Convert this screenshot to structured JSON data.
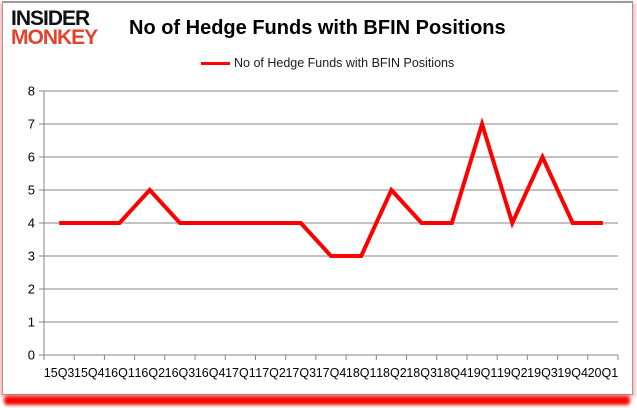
{
  "logo": {
    "line1": "INSIDER",
    "line2": "MONKEY"
  },
  "header": {
    "title": "No of Hedge Funds with BFIN Positions"
  },
  "legend": {
    "label": "No of Hedge Funds with BFIN Positions"
  },
  "colors": {
    "line": "#ff0000",
    "logo_black": "#111111",
    "logo_red": "#e0452f",
    "grid": "#848484",
    "axis": "#848484",
    "bottom_bar": "#f40800"
  },
  "chart_data": {
    "type": "line",
    "title": "No of Hedge Funds with BFIN Positions",
    "categories": [
      "15Q3",
      "15Q4",
      "16Q1",
      "16Q2",
      "16Q3",
      "16Q4",
      "17Q1",
      "17Q2",
      "17Q3",
      "17Q4",
      "18Q1",
      "18Q2",
      "18Q3",
      "18Q4",
      "19Q1",
      "19Q2",
      "19Q3",
      "19Q4",
      "20Q1"
    ],
    "values": [
      4,
      4,
      4,
      5,
      4,
      4,
      4,
      4,
      4,
      3,
      3,
      5,
      4,
      4,
      7,
      4,
      6,
      4,
      4
    ],
    "series": [
      {
        "name": "No of Hedge Funds with BFIN Positions",
        "values": [
          4,
          4,
          4,
          5,
          4,
          4,
          4,
          4,
          4,
          3,
          3,
          5,
          4,
          4,
          7,
          4,
          6,
          4,
          4
        ]
      }
    ],
    "xlabel": "",
    "ylabel": "",
    "ylim": [
      0,
      8
    ],
    "yticks": [
      0,
      1,
      2,
      3,
      4,
      5,
      6,
      7,
      8
    ],
    "grid": "horizontal",
    "legend_position": "top-center",
    "series_color": "#ff0000"
  }
}
